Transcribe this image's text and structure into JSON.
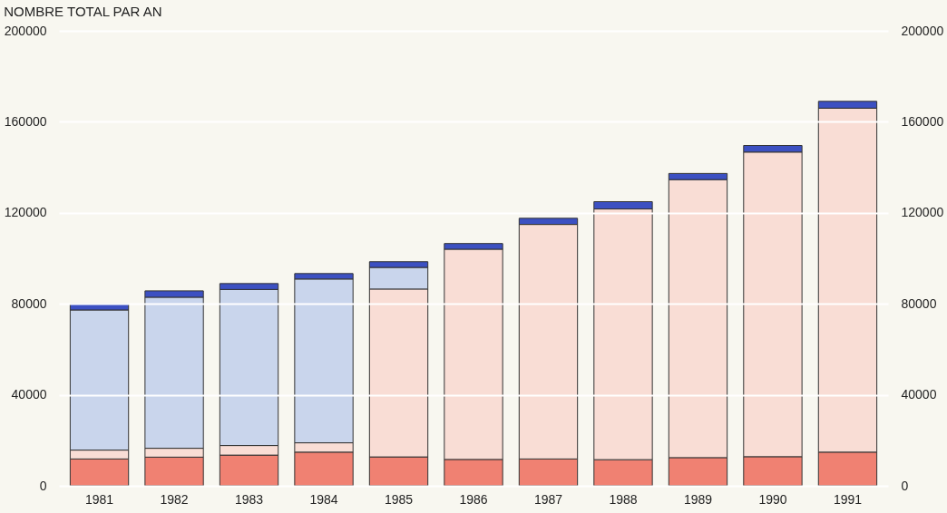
{
  "chart_data": {
    "type": "bar",
    "title": "NOMBRE TOTAL PAR AN",
    "stacked": true,
    "categories": [
      "1981",
      "1982",
      "1983",
      "1984",
      "1985",
      "1986",
      "1987",
      "1988",
      "1989",
      "1990",
      "1991"
    ],
    "series": [
      {
        "color": "#f08172",
        "values": [
          11800,
          12600,
          13500,
          14800,
          12700,
          11600,
          11800,
          11500,
          12400,
          12800,
          14800
        ]
      },
      {
        "color": "#f9ddd5",
        "values": [
          3900,
          3900,
          4200,
          4100,
          73800,
          92400,
          103100,
          110200,
          122200,
          133900,
          151200
        ]
      },
      {
        "color": "#c9d5ec",
        "values": [
          61600,
          66400,
          68600,
          72000,
          9500,
          null,
          null,
          null,
          null,
          null,
          null
        ]
      },
      {
        "color": "#3c50c2",
        "values": [
          2600,
          2800,
          2600,
          2400,
          2500,
          2500,
          2700,
          3200,
          2700,
          2900,
          3000
        ]
      }
    ],
    "ylim": [
      0,
      200000
    ],
    "yticks": [
      0,
      40000,
      80000,
      120000,
      160000,
      200000
    ],
    "y2lim": [
      0,
      200000
    ],
    "y2ticks": [
      0,
      40000,
      80000,
      120000,
      160000,
      200000
    ],
    "grid": "y",
    "legend": false
  }
}
